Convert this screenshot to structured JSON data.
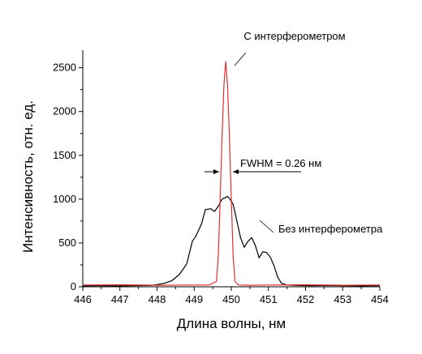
{
  "chart_data": {
    "type": "line",
    "title": "",
    "xlabel": "Длина волны, нм",
    "ylabel": "Интенсивность, отн. ед.",
    "xlim": [
      446,
      454
    ],
    "ylim": [
      0,
      2700
    ],
    "x_ticks": [
      446,
      447,
      448,
      449,
      450,
      451,
      452,
      453,
      454
    ],
    "x_tick_labels": [
      "446",
      "447",
      "448",
      "449",
      "450",
      "451",
      "452",
      "453",
      "454"
    ],
    "y_ticks": [
      0,
      500,
      1000,
      1500,
      2000,
      2500
    ],
    "y_tick_labels": [
      "0",
      "500",
      "1000",
      "1500",
      "2000",
      "2500"
    ],
    "grid": false,
    "series": [
      {
        "name": "Без интерферометра",
        "color": "#000000",
        "x": [
          446.0,
          446.5,
          447.0,
          447.5,
          447.8,
          448.0,
          448.2,
          448.4,
          448.6,
          448.8,
          448.95,
          449.05,
          449.2,
          449.3,
          449.45,
          449.55,
          449.65,
          449.75,
          449.85,
          449.9,
          449.95,
          450.05,
          450.15,
          450.25,
          450.35,
          450.45,
          450.55,
          450.65,
          450.75,
          450.85,
          450.95,
          451.05,
          451.15,
          451.25,
          451.35,
          451.5,
          451.8,
          452.2,
          452.6,
          453.0,
          453.5,
          454.0
        ],
        "y": [
          10,
          12,
          10,
          14,
          15,
          25,
          40,
          70,
          140,
          260,
          520,
          580,
          720,
          880,
          890,
          860,
          920,
          1000,
          1020,
          1030,
          1010,
          940,
          750,
          560,
          450,
          520,
          560,
          470,
          330,
          400,
          390,
          340,
          240,
          110,
          40,
          20,
          15,
          12,
          15,
          12,
          10,
          12
        ]
      },
      {
        "name": "С интерферометром",
        "color": "#e03030",
        "x": [
          446.0,
          447.0,
          448.0,
          449.0,
          449.4,
          449.6,
          449.65,
          449.7,
          449.75,
          449.8,
          449.85,
          449.9,
          449.95,
          450.0,
          450.05,
          450.1,
          450.2,
          450.5,
          451.0,
          452.0,
          453.0,
          454.0
        ],
        "y": [
          20,
          22,
          18,
          20,
          20,
          60,
          350,
          1000,
          1700,
          2300,
          2570,
          2300,
          1700,
          1000,
          350,
          60,
          20,
          18,
          20,
          22,
          18,
          20
        ]
      }
    ],
    "annotations": [
      {
        "text": "С интерферометром"
      },
      {
        "text": "Без интерферометра"
      },
      {
        "text": "FWHM = 0.26 нм"
      }
    ]
  }
}
